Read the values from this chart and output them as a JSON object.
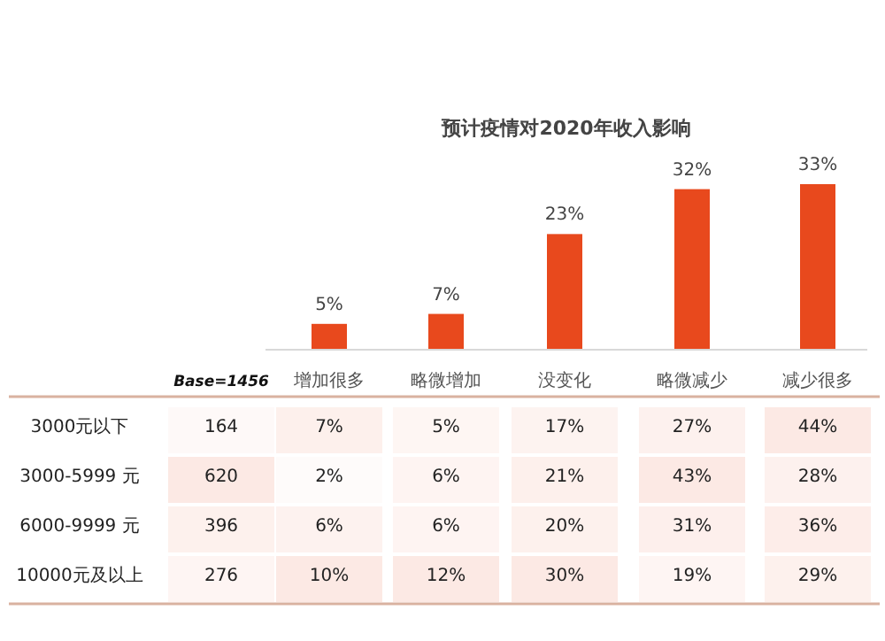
{
  "chart_data": [
    {
      "type": "bar",
      "title": "预计疫情对2020年收入影响",
      "categories": [
        null,
        null,
        null,
        null,
        null
      ],
      "values": [
        5,
        7,
        23,
        32,
        33
      ],
      "value_labels": [
        "5%",
        "7%",
        "23%",
        "32%",
        "33%"
      ],
      "color": "#e8491d"
    },
    {
      "type": "heatmap",
      "categories": [
        "Base=1456",
        "增加很多",
        "略微增加",
        "没变化",
        "略微减少",
        "减少很多"
      ],
      "y_categories": [
        "3000元以下",
        "3000-5999 元",
        "6000-9999 元",
        "10000元及以上"
      ],
      "cells": [
        [
          164,
          7,
          5,
          17,
          27,
          44
        ],
        [
          620,
          2,
          6,
          21,
          43,
          28
        ],
        [
          396,
          6,
          6,
          20,
          31,
          36
        ],
        [
          276,
          10,
          12,
          30,
          19,
          29
        ]
      ],
      "cell_labels": [
        [
          "164",
          "7%",
          "5%",
          "17%",
          "27%",
          "44%"
        ],
        [
          "620",
          "2%",
          "6%",
          "21%",
          "43%",
          "28%"
        ],
        [
          "396",
          "6%",
          "6%",
          "20%",
          "31%",
          "36%"
        ],
        [
          "276",
          "10%",
          "12%",
          "30%",
          "19%",
          "29%"
        ]
      ]
    }
  ]
}
